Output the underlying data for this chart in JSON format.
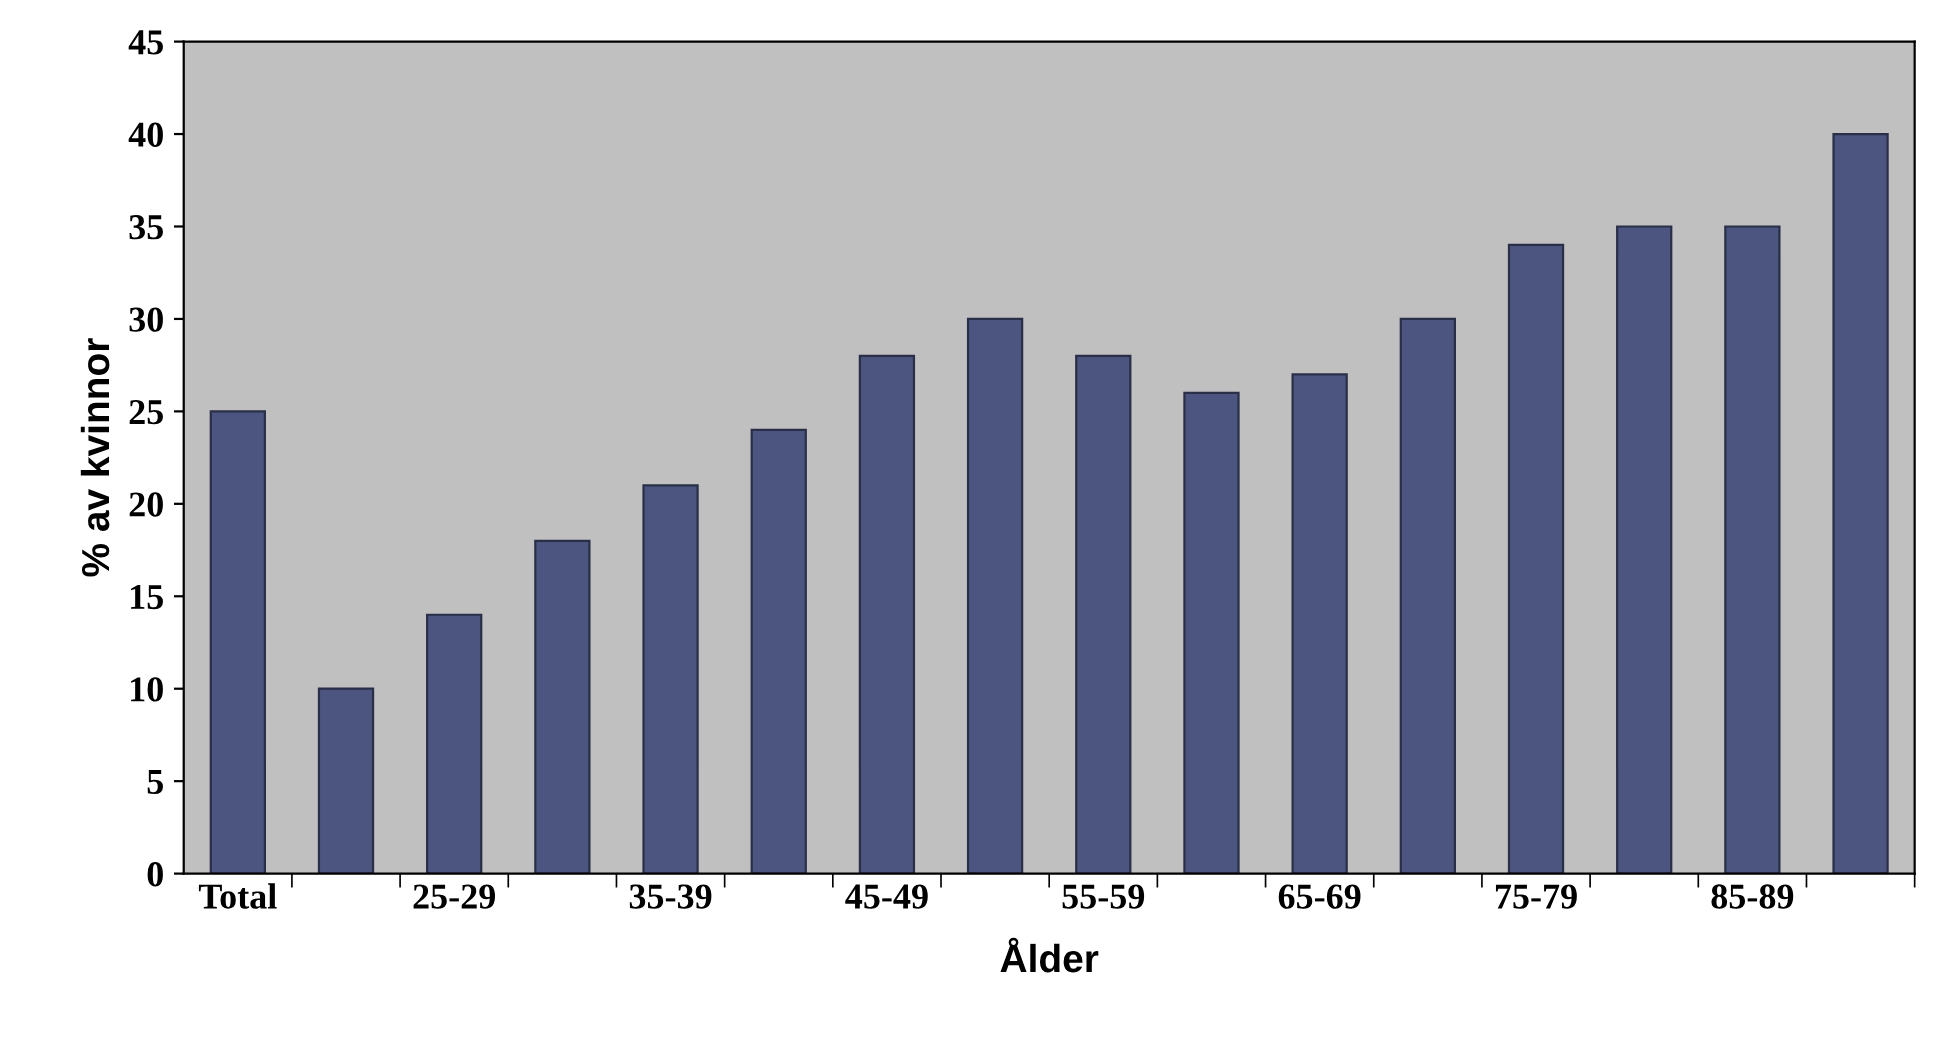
{
  "chart_data": {
    "type": "bar",
    "xlabel": "Ålder",
    "ylabel": "% av kvinnor",
    "categories": [
      "Total",
      null,
      "25-29",
      null,
      "35-39",
      null,
      "45-49",
      null,
      "55-59",
      null,
      "65-69",
      null,
      "75-79",
      null,
      "85-89",
      null
    ],
    "values": [
      25,
      10,
      14,
      18,
      21,
      24,
      28,
      30,
      28,
      26,
      27,
      30,
      34,
      35,
      35,
      40
    ],
    "color": "#4b5580",
    "ylim": [
      0,
      45
    ],
    "yticks": [
      0,
      5,
      10,
      15,
      20,
      25,
      30,
      35,
      40,
      45
    ],
    "grid": false,
    "legend": false
  }
}
